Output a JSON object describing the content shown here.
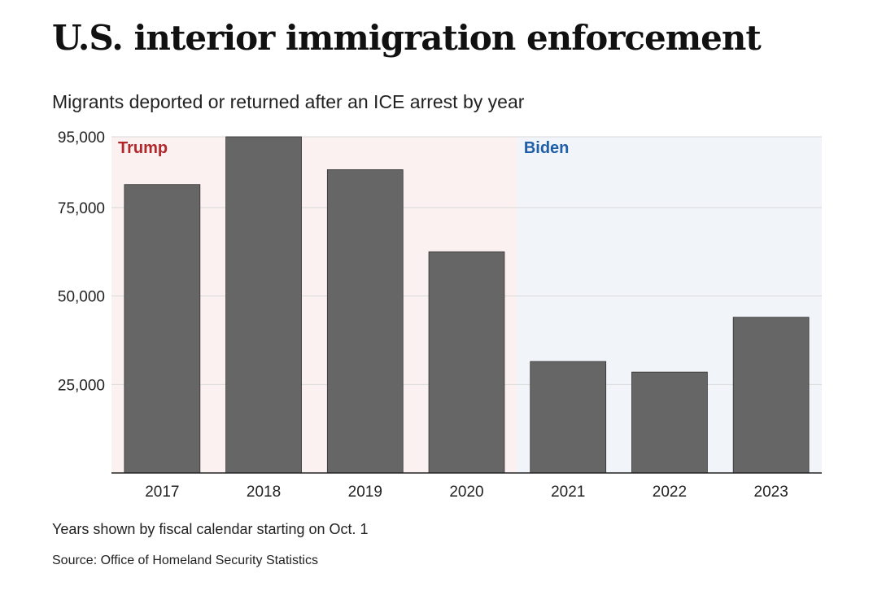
{
  "header": {
    "title": "U.S. interior immigration enforcement",
    "subtitle": "Migrants deported or returned after an ICE arrest by year"
  },
  "footer": {
    "note": "Years shown by fiscal calendar starting on Oct. 1",
    "source": "Source: Office of Homeland Security Statistics"
  },
  "colors": {
    "bar": "#666666",
    "bar_edge": "#333333",
    "trump_region": "#fbf1f1",
    "trump_label": "#b3262a",
    "biden_region": "#f1f4f9",
    "biden_label": "#1f5ea8",
    "grid": "#d9d9d9",
    "axis": "#222222"
  },
  "chart_data": {
    "type": "bar",
    "title": "U.S. interior immigration enforcement",
    "subtitle": "Migrants deported or returned after an ICE arrest by year",
    "xlabel": "",
    "ylabel": "",
    "categories": [
      "2017",
      "2018",
      "2019",
      "2020",
      "2021",
      "2022",
      "2023"
    ],
    "values": [
      81500,
      95000,
      85700,
      62500,
      31500,
      28500,
      44000
    ],
    "ylim": [
      0,
      95000
    ],
    "yticks": [
      25000,
      50000,
      75000,
      95000
    ],
    "ytick_labels": [
      "25,000",
      "50,000",
      "75,000",
      "95,000"
    ],
    "grid": true,
    "annotations": [
      {
        "label": "Trump",
        "from": "2017",
        "to": "2020"
      },
      {
        "label": "Biden",
        "from": "2021",
        "to": "2023"
      }
    ]
  }
}
